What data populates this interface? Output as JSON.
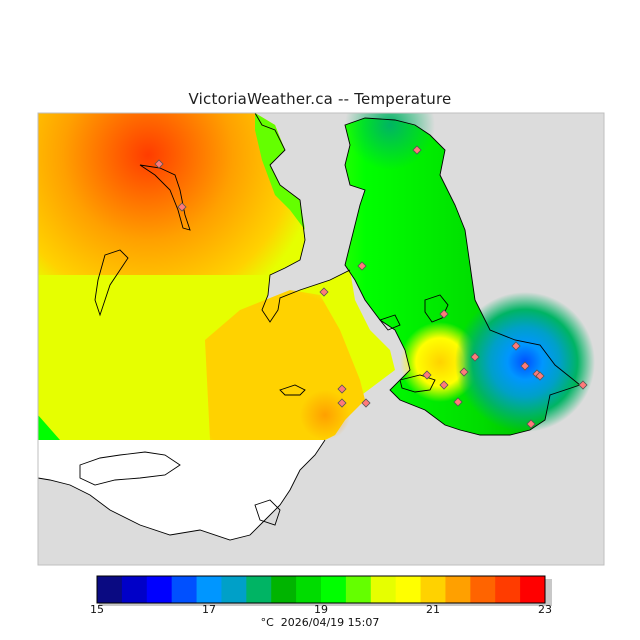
{
  "header": {
    "title": "VictoriaWeather.ca -- Temperature"
  },
  "map": {
    "variable": "Temperature",
    "water_color": "#dcdcdc",
    "no_data_color": "#ffffff"
  },
  "colorbar": {
    "min": 15,
    "max": 23,
    "colors": [
      "#0a0a82",
      "#0000c8",
      "#0000ff",
      "#0050ff",
      "#0096ff",
      "#00a0c8",
      "#00b464",
      "#00b400",
      "#00dc00",
      "#00ff00",
      "#64ff00",
      "#e6ff00",
      "#ffff00",
      "#ffd200",
      "#ffa000",
      "#ff6400",
      "#ff3c00",
      "#ff0000"
    ],
    "tick_labels": [
      "15",
      "17",
      "19",
      "21",
      "23"
    ]
  },
  "footer": {
    "unit": "°C",
    "timestamp": "2026/04/19 15:07"
  }
}
